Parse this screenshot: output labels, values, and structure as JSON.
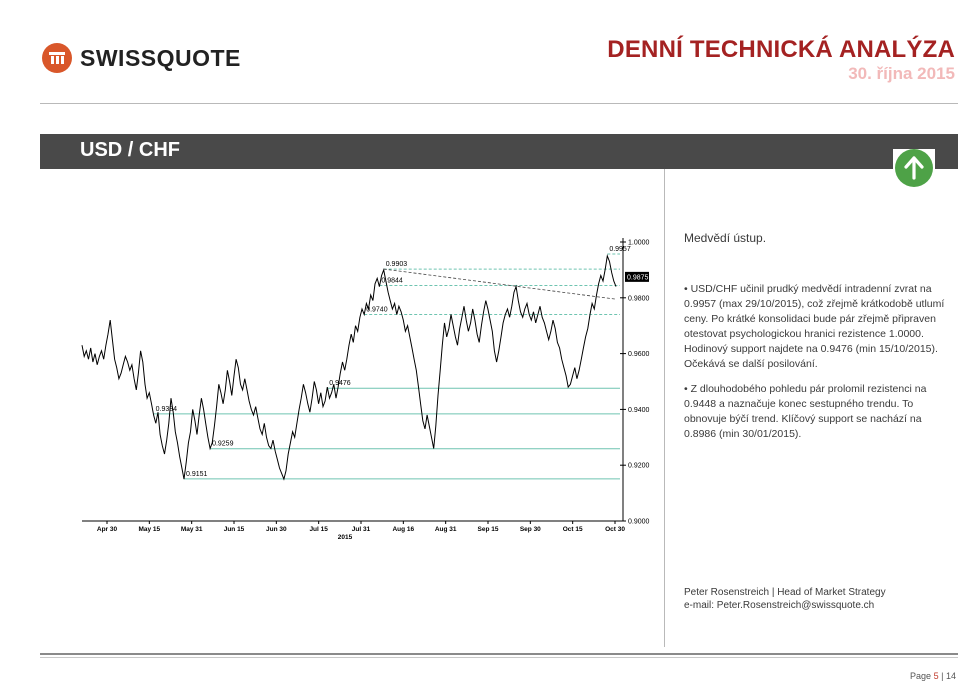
{
  "header": {
    "logo_text": "SWISSQUOTE",
    "title": "DENNÍ TECHNICKÁ ANALÝZA",
    "date": "30. října 2015"
  },
  "pair": {
    "label": "USD / CHF",
    "trend_icon": "arrow-up-icon",
    "trend_color": "#4ea247"
  },
  "commentary": {
    "subheading": "Medvědí ústup.",
    "bullets": [
      "• USD/CHF učinil prudký medvědí intradenní zvrat na 0.9957 (max 29/10/2015), což zřejmě krátkodobě utlumí ceny. Po krátké konsolidaci bude pár zřejmě připraven otestovat psychologickou hranici rezistence 1.0000. Hodinový support najdete na 0.9476 (min 15/10/2015). Očekává se další posilování.",
      "• Z dlouhodobého pohledu pár prolomil rezistenci na 0.9448 a naznačuje konec sestupného trendu. To obnovuje býčí trend. Klíčový support se nachází na 0.8986 (min 30/01/2015)."
    ],
    "author": "Peter Rosenstreich | Head of Market Strategy",
    "email": "e-mail: Peter.Rosenstreich@swissquote.ch"
  },
  "footer": {
    "page_label": "Page",
    "page_current": "5",
    "page_sep": "|",
    "page_total": "14"
  },
  "chart_data": {
    "type": "line",
    "ylim": [
      0.9,
      1.0
    ],
    "yticks": [
      "1.0000",
      "0.9800",
      "0.9600",
      "0.9400",
      "0.9200",
      "0.9000"
    ],
    "ytick_values": [
      1.0,
      0.98,
      0.96,
      0.94,
      0.92,
      0.9
    ],
    "xticks": [
      "Apr 30",
      "May 15",
      "May 31",
      "Jun 15",
      "Jun 30",
      "Jul 15",
      "Jul 31",
      "Aug 16",
      "Aug 31",
      "Sep 15",
      "Sep 30",
      "Oct 15",
      "Oct 30"
    ],
    "xlabel": "2015",
    "last_price": "0.9875",
    "series": [
      {
        "values": [
          0.963,
          0.959,
          0.961,
          0.958,
          0.962,
          0.957,
          0.96,
          0.956,
          0.959,
          0.961,
          0.958,
          0.963,
          0.967,
          0.972,
          0.965,
          0.958,
          0.955,
          0.951,
          0.953,
          0.956,
          0.959,
          0.957,
          0.954,
          0.956,
          0.951,
          0.947,
          0.953,
          0.961,
          0.957,
          0.949,
          0.944,
          0.946,
          0.942,
          0.938,
          0.935,
          0.939,
          0.931,
          0.927,
          0.924,
          0.929,
          0.935,
          0.944,
          0.939,
          0.932,
          0.928,
          0.923,
          0.919,
          0.915,
          0.921,
          0.928,
          0.932,
          0.94,
          0.936,
          0.931,
          0.938,
          0.944,
          0.94,
          0.935,
          0.93,
          0.926,
          0.928,
          0.934,
          0.941,
          0.949,
          0.946,
          0.942,
          0.947,
          0.954,
          0.95,
          0.945,
          0.952,
          0.958,
          0.955,
          0.949,
          0.947,
          0.951,
          0.947,
          0.943,
          0.94,
          0.938,
          0.941,
          0.937,
          0.933,
          0.931,
          0.935,
          0.93,
          0.927,
          0.926,
          0.929,
          0.925,
          0.922,
          0.919,
          0.917,
          0.915,
          0.918,
          0.924,
          0.928,
          0.932,
          0.93,
          0.935,
          0.94,
          0.944,
          0.949,
          0.946,
          0.942,
          0.939,
          0.944,
          0.95,
          0.947,
          0.942,
          0.946,
          0.941,
          0.943,
          0.948,
          0.944,
          0.946,
          0.949,
          0.944,
          0.948,
          0.953,
          0.957,
          0.954,
          0.958,
          0.963,
          0.967,
          0.964,
          0.97,
          0.968,
          0.973,
          0.976,
          0.974,
          0.978,
          0.976,
          0.981,
          0.979,
          0.985,
          0.987,
          0.984,
          0.988,
          0.99,
          0.986,
          0.982,
          0.979,
          0.976,
          0.978,
          0.974,
          0.977,
          0.975,
          0.972,
          0.968,
          0.97,
          0.966,
          0.962,
          0.958,
          0.954,
          0.948,
          0.942,
          0.936,
          0.933,
          0.938,
          0.934,
          0.93,
          0.926,
          0.934,
          0.945,
          0.954,
          0.963,
          0.971,
          0.966,
          0.969,
          0.974,
          0.97,
          0.966,
          0.963,
          0.969,
          0.973,
          0.977,
          0.972,
          0.968,
          0.971,
          0.976,
          0.972,
          0.967,
          0.964,
          0.97,
          0.975,
          0.979,
          0.976,
          0.972,
          0.968,
          0.961,
          0.957,
          0.961,
          0.966,
          0.971,
          0.974,
          0.976,
          0.973,
          0.977,
          0.982,
          0.984,
          0.979,
          0.975,
          0.973,
          0.976,
          0.978,
          0.974,
          0.972,
          0.975,
          0.971,
          0.974,
          0.977,
          0.973,
          0.971,
          0.968,
          0.965,
          0.968,
          0.972,
          0.969,
          0.964,
          0.962,
          0.958,
          0.955,
          0.952,
          0.948,
          0.949,
          0.952,
          0.955,
          0.951,
          0.954,
          0.958,
          0.962,
          0.966,
          0.969,
          0.974,
          0.978,
          0.976,
          0.981,
          0.985,
          0.988,
          0.986,
          0.99,
          0.995,
          0.993,
          0.989,
          0.986,
          0.984
        ]
      }
    ],
    "levels": [
      {
        "label": "0.9957",
        "value": 0.9957,
        "dashed": true
      },
      {
        "label": "0.9903",
        "value": 0.9903,
        "dashed": true
      },
      {
        "label": "0.9844",
        "value": 0.9844,
        "dashed": true
      },
      {
        "label": "0.9740",
        "value": 0.974,
        "dashed": true
      },
      {
        "label": "0.9476",
        "value": 0.9476,
        "dashed": false
      },
      {
        "label": "0.9384",
        "value": 0.9384,
        "dashed": false
      },
      {
        "label": "0.9259",
        "value": 0.9259,
        "dashed": false
      },
      {
        "label": "0.9151",
        "value": 0.9151,
        "dashed": false
      }
    ],
    "grid": false,
    "line_color": "#000000",
    "level_color": "#6fc4b0"
  }
}
